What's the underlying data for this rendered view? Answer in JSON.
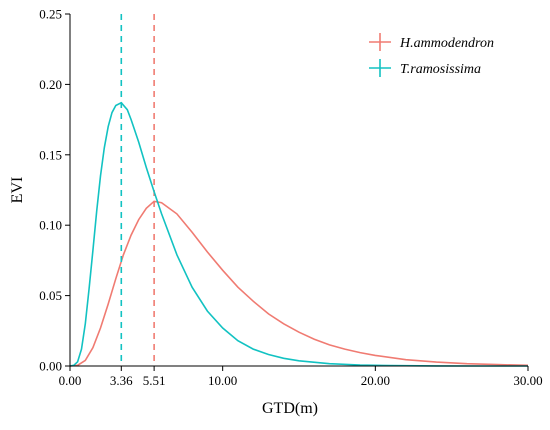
{
  "chart_data": {
    "type": "line",
    "xlabel": "GTD(m)",
    "ylabel": "EVI",
    "xlim": [
      0,
      30
    ],
    "ylim": [
      0,
      0.25
    ],
    "x_ticks": [
      {
        "value": 0,
        "label": "0.00"
      },
      {
        "value": 3.36,
        "label": "3.36"
      },
      {
        "value": 5.51,
        "label": "5.51"
      },
      {
        "value": 10,
        "label": "10.00"
      },
      {
        "value": 20,
        "label": "20.00"
      },
      {
        "value": 30,
        "label": "30.00"
      }
    ],
    "y_ticks": [
      {
        "value": 0,
        "label": "0.00"
      },
      {
        "value": 0.05,
        "label": "0.05"
      },
      {
        "value": 0.1,
        "label": "0.10"
      },
      {
        "value": 0.15,
        "label": "0.15"
      },
      {
        "value": 0.2,
        "label": "0.20"
      },
      {
        "value": 0.25,
        "label": "0.25"
      }
    ],
    "legend_position": "top-right",
    "series": [
      {
        "name": "H.ammodendron",
        "color": "#f07b72",
        "peak_x": 5.51,
        "x": [
          0,
          0.5,
          1,
          1.5,
          2,
          2.5,
          3,
          3.5,
          4,
          4.5,
          5,
          5.51,
          6,
          7,
          8,
          9,
          10,
          11,
          12,
          13,
          14,
          15,
          16,
          17,
          18,
          19,
          20,
          22,
          24,
          26,
          28,
          30
        ],
        "values": [
          0,
          0.0005,
          0.004,
          0.013,
          0.027,
          0.044,
          0.062,
          0.079,
          0.093,
          0.104,
          0.112,
          0.117,
          0.116,
          0.108,
          0.095,
          0.081,
          0.068,
          0.056,
          0.046,
          0.037,
          0.03,
          0.024,
          0.019,
          0.015,
          0.012,
          0.0095,
          0.0075,
          0.0045,
          0.0028,
          0.0016,
          0.001,
          0.0005
        ]
      },
      {
        "name": "T.ramosissima",
        "color": "#12c2c2",
        "peak_x": 3.36,
        "x": [
          0,
          0.25,
          0.5,
          0.75,
          1,
          1.25,
          1.5,
          1.75,
          2,
          2.25,
          2.5,
          2.75,
          3,
          3.36,
          3.75,
          4,
          4.5,
          5,
          5.5,
          6,
          7,
          8,
          9,
          10,
          11,
          12,
          13,
          14,
          15,
          17,
          19,
          21,
          24,
          27,
          30
        ],
        "values": [
          0,
          0.0005,
          0.003,
          0.012,
          0.03,
          0.055,
          0.082,
          0.11,
          0.135,
          0.155,
          0.17,
          0.18,
          0.185,
          0.187,
          0.182,
          0.175,
          0.159,
          0.141,
          0.124,
          0.108,
          0.079,
          0.056,
          0.039,
          0.027,
          0.018,
          0.012,
          0.0082,
          0.0055,
          0.0037,
          0.0016,
          0.0007,
          0.0003,
          0.0001,
          0,
          0
        ]
      }
    ]
  }
}
